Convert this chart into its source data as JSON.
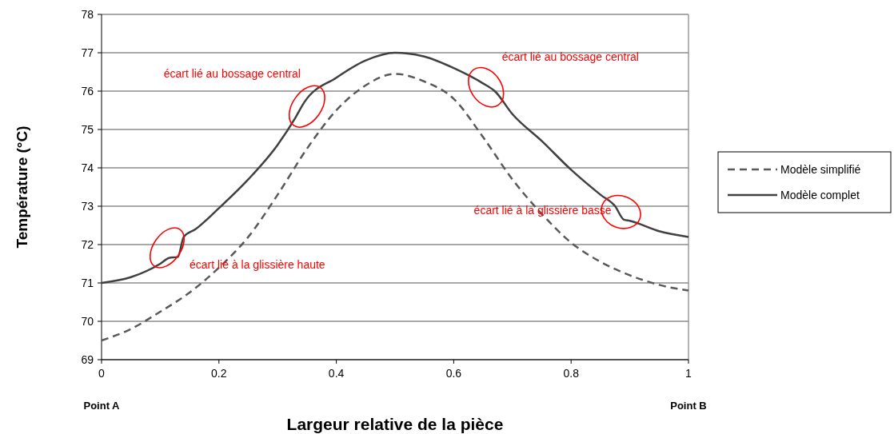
{
  "chart_data": {
    "type": "line",
    "xlabel": "Largeur relative de la pièce",
    "ylabel": "Température (°C)",
    "xlim": [
      0,
      1
    ],
    "xticks": [
      0,
      0.2,
      0.4,
      0.6,
      0.8,
      1
    ],
    "ylim": [
      69,
      78
    ],
    "yticks": [
      69,
      70,
      71,
      72,
      73,
      74,
      75,
      76,
      77,
      78
    ],
    "grid": "y",
    "legend": "right",
    "marker": "none",
    "series": [
      {
        "name": "Modèle simplifié",
        "color": "#595959",
        "line_style": "dashed",
        "x": [
          0,
          0.05,
          0.1,
          0.15,
          0.2,
          0.25,
          0.3,
          0.35,
          0.4,
          0.45,
          0.5,
          0.55,
          0.6,
          0.65,
          0.7,
          0.75,
          0.8,
          0.85,
          0.9,
          0.95,
          1
        ],
        "values": [
          69.5,
          69.8,
          70.25,
          70.75,
          71.4,
          72.2,
          73.3,
          74.5,
          75.5,
          76.15,
          76.45,
          76.25,
          75.8,
          74.8,
          73.7,
          72.8,
          72.05,
          71.55,
          71.2,
          70.95,
          70.8
        ]
      },
      {
        "name": "Modèle complet",
        "color": "#404040",
        "line_style": "solid",
        "x": [
          0,
          0.05,
          0.1,
          0.115,
          0.13,
          0.14,
          0.16,
          0.2,
          0.25,
          0.3,
          0.33,
          0.345,
          0.4,
          0.45,
          0.5,
          0.55,
          0.6,
          0.65,
          0.67,
          0.7,
          0.75,
          0.8,
          0.85,
          0.875,
          0.89,
          0.9,
          0.95,
          1
        ],
        "values": [
          71.0,
          71.15,
          71.5,
          71.65,
          71.68,
          72.2,
          72.4,
          72.95,
          73.7,
          74.6,
          75.3,
          75.7,
          76.35,
          76.8,
          77.0,
          76.9,
          76.6,
          76.2,
          76.0,
          75.4,
          74.7,
          73.95,
          73.3,
          73.0,
          72.65,
          72.62,
          72.35,
          72.2
        ]
      }
    ],
    "annotations": [
      "écart lié à la glissière haute",
      {
        "text": "écart lié au bossage central",
        "x": 0.35,
        "y": 75.6
      },
      {
        "text": "écart lié au bossage central",
        "x": 0.655,
        "y": 76.1
      },
      {
        "text": "écart lié à la glissière basse",
        "x": 0.885,
        "y": 72.85
      },
      "Point A",
      "Point B"
    ]
  }
}
